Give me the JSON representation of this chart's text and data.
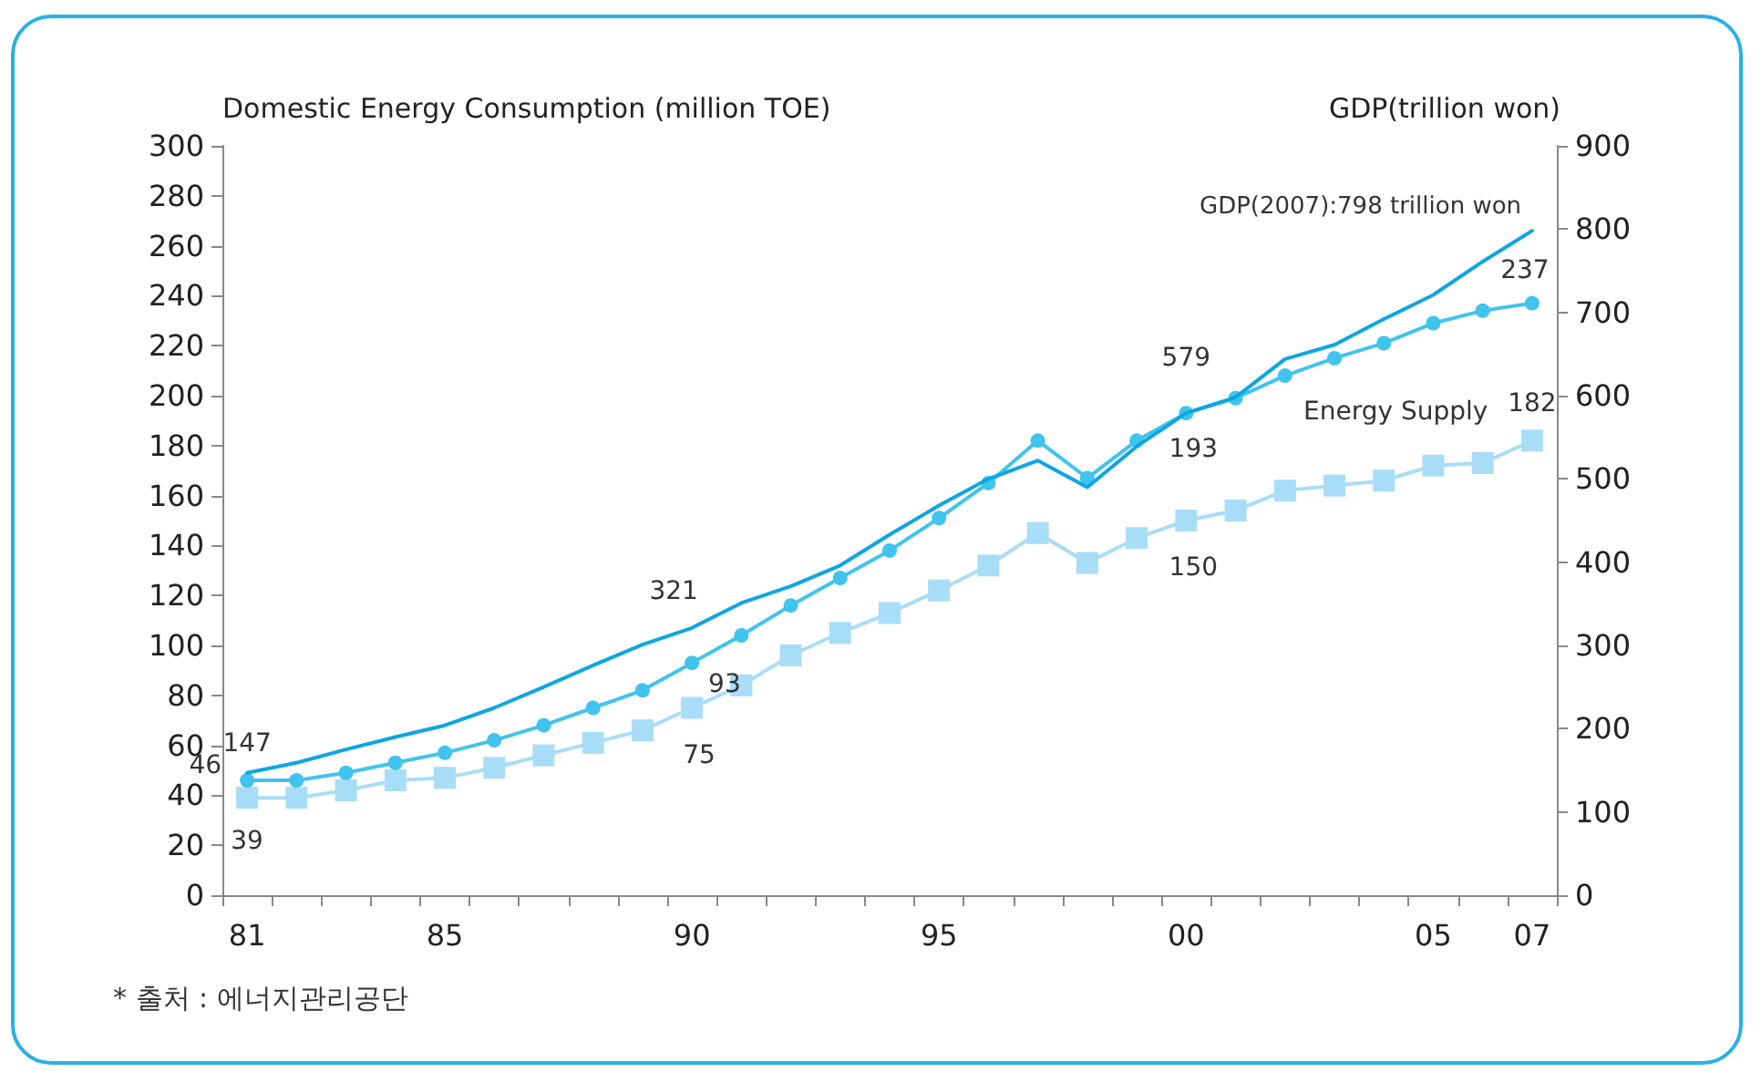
{
  "chart_data": {
    "type": "line",
    "categories": [
      "81",
      null,
      null,
      null,
      "85",
      null,
      null,
      null,
      null,
      "90",
      null,
      null,
      null,
      null,
      "95",
      null,
      null,
      null,
      null,
      "00",
      null,
      null,
      null,
      null,
      "05",
      null,
      "07"
    ],
    "ylabel": "Domestic Energy Consumption (million TOE)",
    "y2label": "GDP(trillion won)",
    "ylim": [
      0,
      300
    ],
    "yticks": [
      0,
      20,
      40,
      60,
      80,
      100,
      120,
      140,
      160,
      180,
      200,
      220,
      240,
      260,
      280,
      300
    ],
    "y2lim": [
      0,
      900
    ],
    "y2ticks": [
      0,
      100,
      200,
      300,
      400,
      500,
      600,
      700,
      800,
      900
    ],
    "grid": false,
    "legend": false,
    "series": [
      {
        "axis": "y2",
        "color": "#0ea5e4",
        "marker": "none",
        "values": [
          147,
          159,
          175,
          190,
          204,
          225,
          250,
          276,
          301,
          321,
          351,
          371,
          396,
          433,
          468,
          500,
          522,
          490,
          539,
          579,
          598,
          644,
          661,
          692,
          721,
          761,
          798
        ],
        "value_labels": [
          "147",
          null,
          null,
          null,
          null,
          null,
          null,
          null,
          null,
          "321",
          null,
          null,
          null,
          null,
          null,
          null,
          null,
          null,
          null,
          "579",
          null,
          null,
          null,
          null,
          null,
          null,
          null
        ]
      },
      {
        "color": "#40c4ee",
        "marker": "circle",
        "values": [
          46,
          46,
          49,
          53,
          57,
          62,
          68,
          75,
          82,
          93,
          104,
          116,
          127,
          138,
          151,
          165,
          182,
          167,
          182,
          193,
          199,
          208,
          215,
          221,
          229,
          234,
          237
        ],
        "value_labels": [
          "46",
          null,
          null,
          null,
          null,
          null,
          null,
          null,
          null,
          "93",
          null,
          null,
          null,
          null,
          null,
          null,
          null,
          null,
          null,
          "193",
          null,
          null,
          null,
          null,
          null,
          null,
          "237"
        ]
      },
      {
        "name": "Energy Supply",
        "color": "#a8ddf7",
        "marker": "square",
        "values": [
          39,
          39,
          42,
          46,
          47,
          51,
          56,
          61,
          66,
          75,
          84,
          96,
          105,
          113,
          122,
          132,
          145,
          133,
          143,
          150,
          154,
          162,
          164,
          166,
          172,
          173,
          182
        ],
        "value_labels": [
          "39",
          null,
          null,
          null,
          null,
          null,
          null,
          null,
          null,
          "75",
          null,
          null,
          null,
          null,
          null,
          null,
          null,
          null,
          null,
          "150",
          null,
          null,
          null,
          null,
          null,
          null,
          "182"
        ]
      }
    ],
    "annotations": [
      "GDP(2007):798 trillion won",
      "* 출처 : 에너지관리공단"
    ]
  }
}
